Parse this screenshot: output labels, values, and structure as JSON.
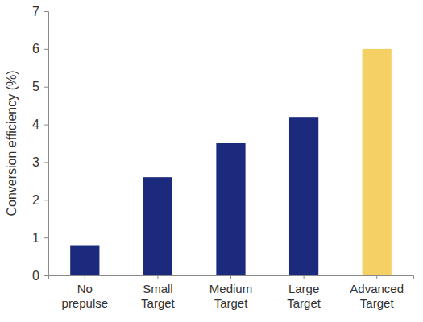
{
  "chart_data": {
    "type": "bar",
    "y_label": "Conversion efficiency (%)",
    "categories": [
      "No prepulse",
      "Small Target",
      "Medium Target",
      "Large Target",
      "Advanced Target"
    ],
    "values": [
      0.8,
      2.6,
      3.5,
      4.2,
      6.0
    ],
    "colors": [
      "#1c2a7d",
      "#1c2a7d",
      "#1c2a7d",
      "#1c2a7d",
      "#f5d165"
    ],
    "ylim": [
      0,
      7
    ],
    "yticks": [
      0,
      1,
      2,
      3,
      4,
      5,
      6,
      7
    ],
    "grid": false
  }
}
